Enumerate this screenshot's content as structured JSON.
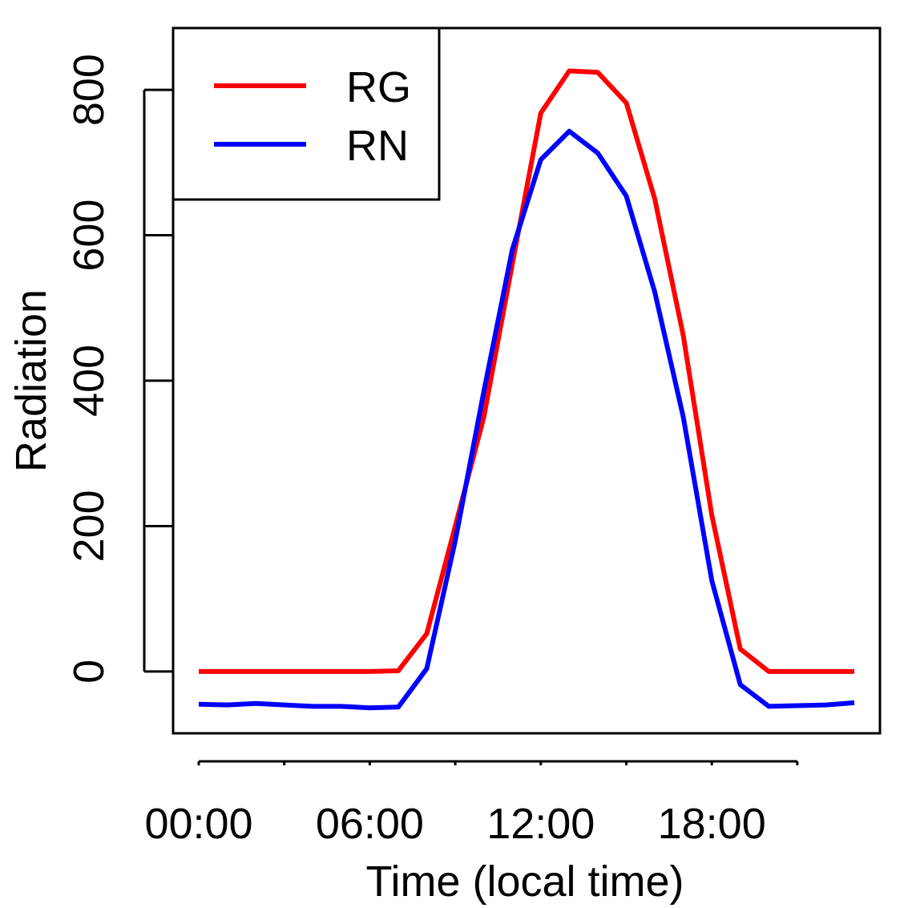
{
  "chart_data": {
    "type": "line",
    "title": "",
    "xlabel": "Time (local time)",
    "ylabel": "Radiation",
    "x": [
      "00:00",
      "01:00",
      "02:00",
      "03:00",
      "04:00",
      "05:00",
      "06:00",
      "07:00",
      "08:00",
      "09:00",
      "10:00",
      "11:00",
      "12:00",
      "13:00",
      "14:00",
      "15:00",
      "16:00",
      "17:00",
      "18:00",
      "19:00",
      "20:00",
      "21:00",
      "22:00",
      "23:00"
    ],
    "x_ticks": [
      "00:00",
      "06:00",
      "12:00",
      "18:00"
    ],
    "y_ticks": [
      "0",
      "200",
      "400",
      "600",
      "800"
    ],
    "xlim": [
      -0.9,
      23.9
    ],
    "ylim": [
      -85,
      885
    ],
    "grid": false,
    "legend_position": "top-left",
    "series": [
      {
        "name": "RG",
        "color": "#ff0000",
        "values": [
          0,
          0,
          0,
          0,
          0,
          0,
          0,
          1,
          52,
          200,
          350,
          560,
          768,
          826,
          824,
          782,
          650,
          462,
          215,
          31,
          0,
          0,
          0,
          0
        ]
      },
      {
        "name": "RN",
        "color": "#0000ff",
        "values": [
          -45,
          -46,
          -44,
          -46,
          -48,
          -48,
          -50,
          -49,
          4,
          180,
          385,
          580,
          704,
          743,
          713,
          654,
          522,
          350,
          125,
          -18,
          -48,
          -47,
          -46,
          -43
        ]
      }
    ]
  }
}
